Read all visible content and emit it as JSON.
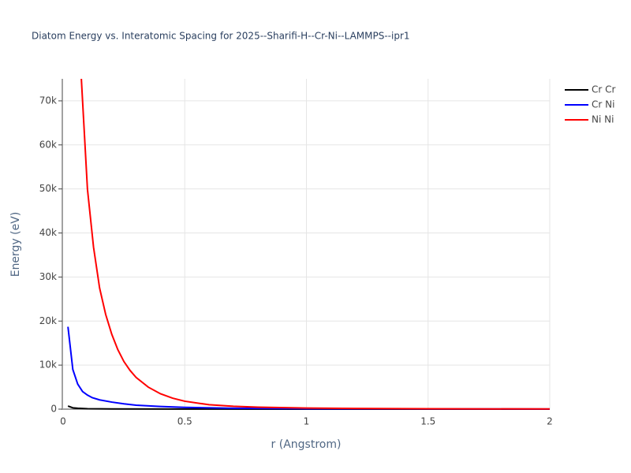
{
  "chart_data": {
    "type": "line",
    "title": "Diatom Energy vs. Interatomic Spacing for 2025--Sharifi-H--Cr-Ni--LAMMPS--ipr1",
    "x_label": "r (Angstrom)",
    "y_label": "Energy (eV)",
    "xlim": [
      0,
      2
    ],
    "ylim": [
      0,
      75000
    ],
    "xticks": [
      0,
      0.5,
      1,
      1.5,
      2
    ],
    "yticks": [
      0,
      {
        "value": 10000,
        "label": "10k"
      },
      {
        "value": 20000,
        "label": "20k"
      },
      {
        "value": 30000,
        "label": "30k"
      },
      {
        "value": 40000,
        "label": "40k"
      },
      {
        "value": 50000,
        "label": "50k"
      },
      {
        "value": 60000,
        "label": "60k"
      },
      {
        "value": 70000,
        "label": "70k"
      }
    ],
    "grid": true,
    "legend": "top-right",
    "series": [
      {
        "name": "Cr Cr",
        "color": "#000000",
        "x": [
          0.02,
          0.04,
          0.06,
          0.1,
          0.2,
          0.5,
          1.0,
          2.0
        ],
        "values": [
          700,
          300,
          200,
          100,
          50,
          20,
          5,
          0
        ]
      },
      {
        "name": "Cr Ni",
        "color": "#0000ff",
        "x": [
          0.02,
          0.04,
          0.06,
          0.08,
          0.1,
          0.12,
          0.15,
          0.2,
          0.25,
          0.3,
          0.4,
          0.5,
          0.7,
          1.0,
          1.5,
          2.0
        ],
        "values": [
          18700,
          9000,
          5700,
          4000,
          3200,
          2600,
          2100,
          1600,
          1200,
          900,
          600,
          400,
          200,
          100,
          50,
          30
        ]
      },
      {
        "name": "Ni Ni",
        "color": "#ff0000",
        "x": [
          0.075,
          0.1,
          0.125,
          0.15,
          0.175,
          0.2,
          0.225,
          0.25,
          0.275,
          0.3,
          0.35,
          0.4,
          0.45,
          0.5,
          0.6,
          0.7,
          0.8,
          1.0,
          1.2,
          1.5,
          2.0
        ],
        "values": [
          75000,
          50000,
          36800,
          27500,
          21500,
          17000,
          13500,
          10800,
          8800,
          7200,
          5000,
          3500,
          2500,
          1800,
          1000,
          650,
          450,
          250,
          150,
          80,
          40
        ]
      }
    ]
  }
}
